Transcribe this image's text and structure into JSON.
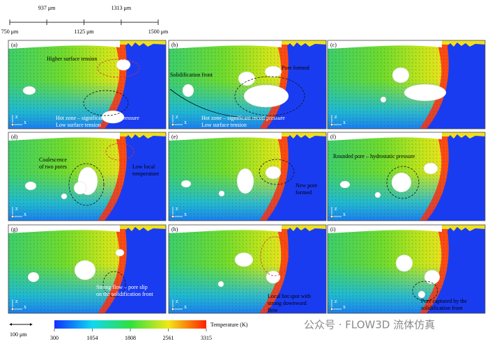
{
  "scale": {
    "lim": [
      750,
      1500
    ],
    "ticks": [
      {
        "value": 750,
        "label": "750 μm"
      },
      {
        "value": 1125,
        "label": "1125 μm"
      },
      {
        "value": 1500,
        "label": "1500 μm"
      }
    ],
    "upper_ticks": [
      {
        "value": 937,
        "label": "937 μm"
      },
      {
        "value": 1313,
        "label": "1313 μm"
      }
    ]
  },
  "panels": [
    {
      "label": "(a)",
      "annotations": [
        "Higher surface tension",
        "Hot zone – significant recoil pressure",
        "Low surface tension"
      ]
    },
    {
      "label": "(b)",
      "annotations": [
        "Solidification front",
        "Pore formed",
        "Hot zone – significant recoil pressure",
        "Low surface tension"
      ]
    },
    {
      "label": "(c)",
      "annotations": []
    },
    {
      "label": "(d)",
      "annotations": [
        "Coalescence",
        "of two pores",
        "Low local",
        "temperature"
      ]
    },
    {
      "label": "(e)",
      "annotations": [
        "New pore",
        "formed"
      ]
    },
    {
      "label": "(f)",
      "annotations": [
        "Rounded pore – hydrostatic pressure"
      ]
    },
    {
      "label": "(g)",
      "annotations": [
        "Strong flow – pore slip",
        "on the solidification front"
      ]
    },
    {
      "label": "(h)",
      "annotations": [
        "Local hot spot with",
        "strong downward",
        "flow"
      ]
    },
    {
      "label": "(i)",
      "annotations": [
        "Pore captured by the",
        "solidification front"
      ]
    }
  ],
  "triad": {
    "vertical": "z",
    "horizontal": "x"
  },
  "scale_bar": "100 μm",
  "colorbar": {
    "label": "Temperature (K)",
    "lim": [
      300,
      3315
    ],
    "ticks": [
      300,
      1054,
      1808,
      2561,
      3315
    ]
  },
  "watermark": "公众号 · FLOW3D 流体仿真"
}
